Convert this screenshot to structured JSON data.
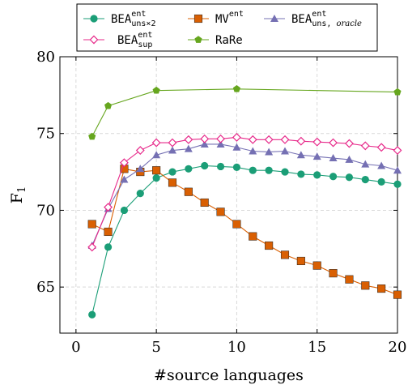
{
  "chart_data": {
    "type": "line",
    "xlabel": "#source languages",
    "ylabel": "F",
    "ylabel_sub": "1",
    "xlim": [
      -1,
      20
    ],
    "ylim": [
      62,
      80
    ],
    "xticks": [
      0,
      5,
      10,
      15,
      20
    ],
    "yticks": [
      65,
      70,
      75,
      80
    ],
    "grid": true,
    "legend_position": "top",
    "series": [
      {
        "name": "BEA",
        "sup": "ent",
        "sub": "uns×2",
        "sub_italic": false,
        "color": "#1b9e77",
        "marker": "circle",
        "x": [
          1,
          2,
          3,
          4,
          5,
          6,
          7,
          8,
          9,
          10,
          11,
          12,
          13,
          14,
          15,
          16,
          17,
          18,
          19,
          20
        ],
        "y": [
          63.2,
          67.6,
          70.0,
          71.1,
          72.1,
          72.5,
          72.7,
          72.9,
          72.85,
          72.8,
          72.6,
          72.6,
          72.5,
          72.35,
          72.3,
          72.2,
          72.15,
          72.0,
          71.85,
          71.7
        ]
      },
      {
        "name": "MV",
        "sup": "ent",
        "sub": "",
        "sub_italic": false,
        "color": "#d95f02",
        "marker": "square",
        "x": [
          1,
          2,
          3,
          4,
          5,
          6,
          7,
          8,
          9,
          10,
          11,
          12,
          13,
          14,
          15,
          16,
          17,
          18,
          19,
          20
        ],
        "y": [
          69.1,
          68.6,
          72.7,
          72.5,
          72.6,
          71.8,
          71.2,
          70.5,
          69.9,
          69.1,
          68.3,
          67.7,
          67.1,
          66.7,
          66.4,
          65.9,
          65.5,
          65.1,
          64.9,
          64.5
        ]
      },
      {
        "name": "BEA",
        "sup": "ent",
        "sub": "uns, ",
        "sub_extra": "oracle",
        "sub_italic": true,
        "color": "#7570b3",
        "marker": "triangle",
        "x": [
          1,
          2,
          3,
          4,
          5,
          6,
          7,
          8,
          9,
          10,
          11,
          12,
          13,
          14,
          15,
          16,
          17,
          18,
          19,
          20
        ],
        "y": [
          67.7,
          70.1,
          72.0,
          72.7,
          73.6,
          73.9,
          74.0,
          74.3,
          74.3,
          74.1,
          73.85,
          73.8,
          73.85,
          73.6,
          73.5,
          73.4,
          73.3,
          73.0,
          72.9,
          72.6
        ]
      },
      {
        "name": "BEA",
        "sup": "ent",
        "sub": "sup",
        "sub_italic": false,
        "color": "#e7298a",
        "marker": "diamond",
        "x": [
          1,
          2,
          3,
          4,
          5,
          6,
          7,
          8,
          9,
          10,
          11,
          12,
          13,
          14,
          15,
          16,
          17,
          18,
          19,
          20
        ],
        "y": [
          67.6,
          70.2,
          73.1,
          73.9,
          74.4,
          74.4,
          74.6,
          74.65,
          74.65,
          74.75,
          74.6,
          74.6,
          74.6,
          74.5,
          74.45,
          74.4,
          74.35,
          74.2,
          74.1,
          73.9
        ]
      },
      {
        "name": "RaRe",
        "sup": "",
        "sub": "",
        "sub_italic": false,
        "color": "#66a61e",
        "marker": "pentagon",
        "x": [
          1,
          2,
          5,
          10,
          20
        ],
        "y": [
          74.8,
          76.8,
          77.8,
          77.9,
          77.7
        ]
      }
    ]
  }
}
